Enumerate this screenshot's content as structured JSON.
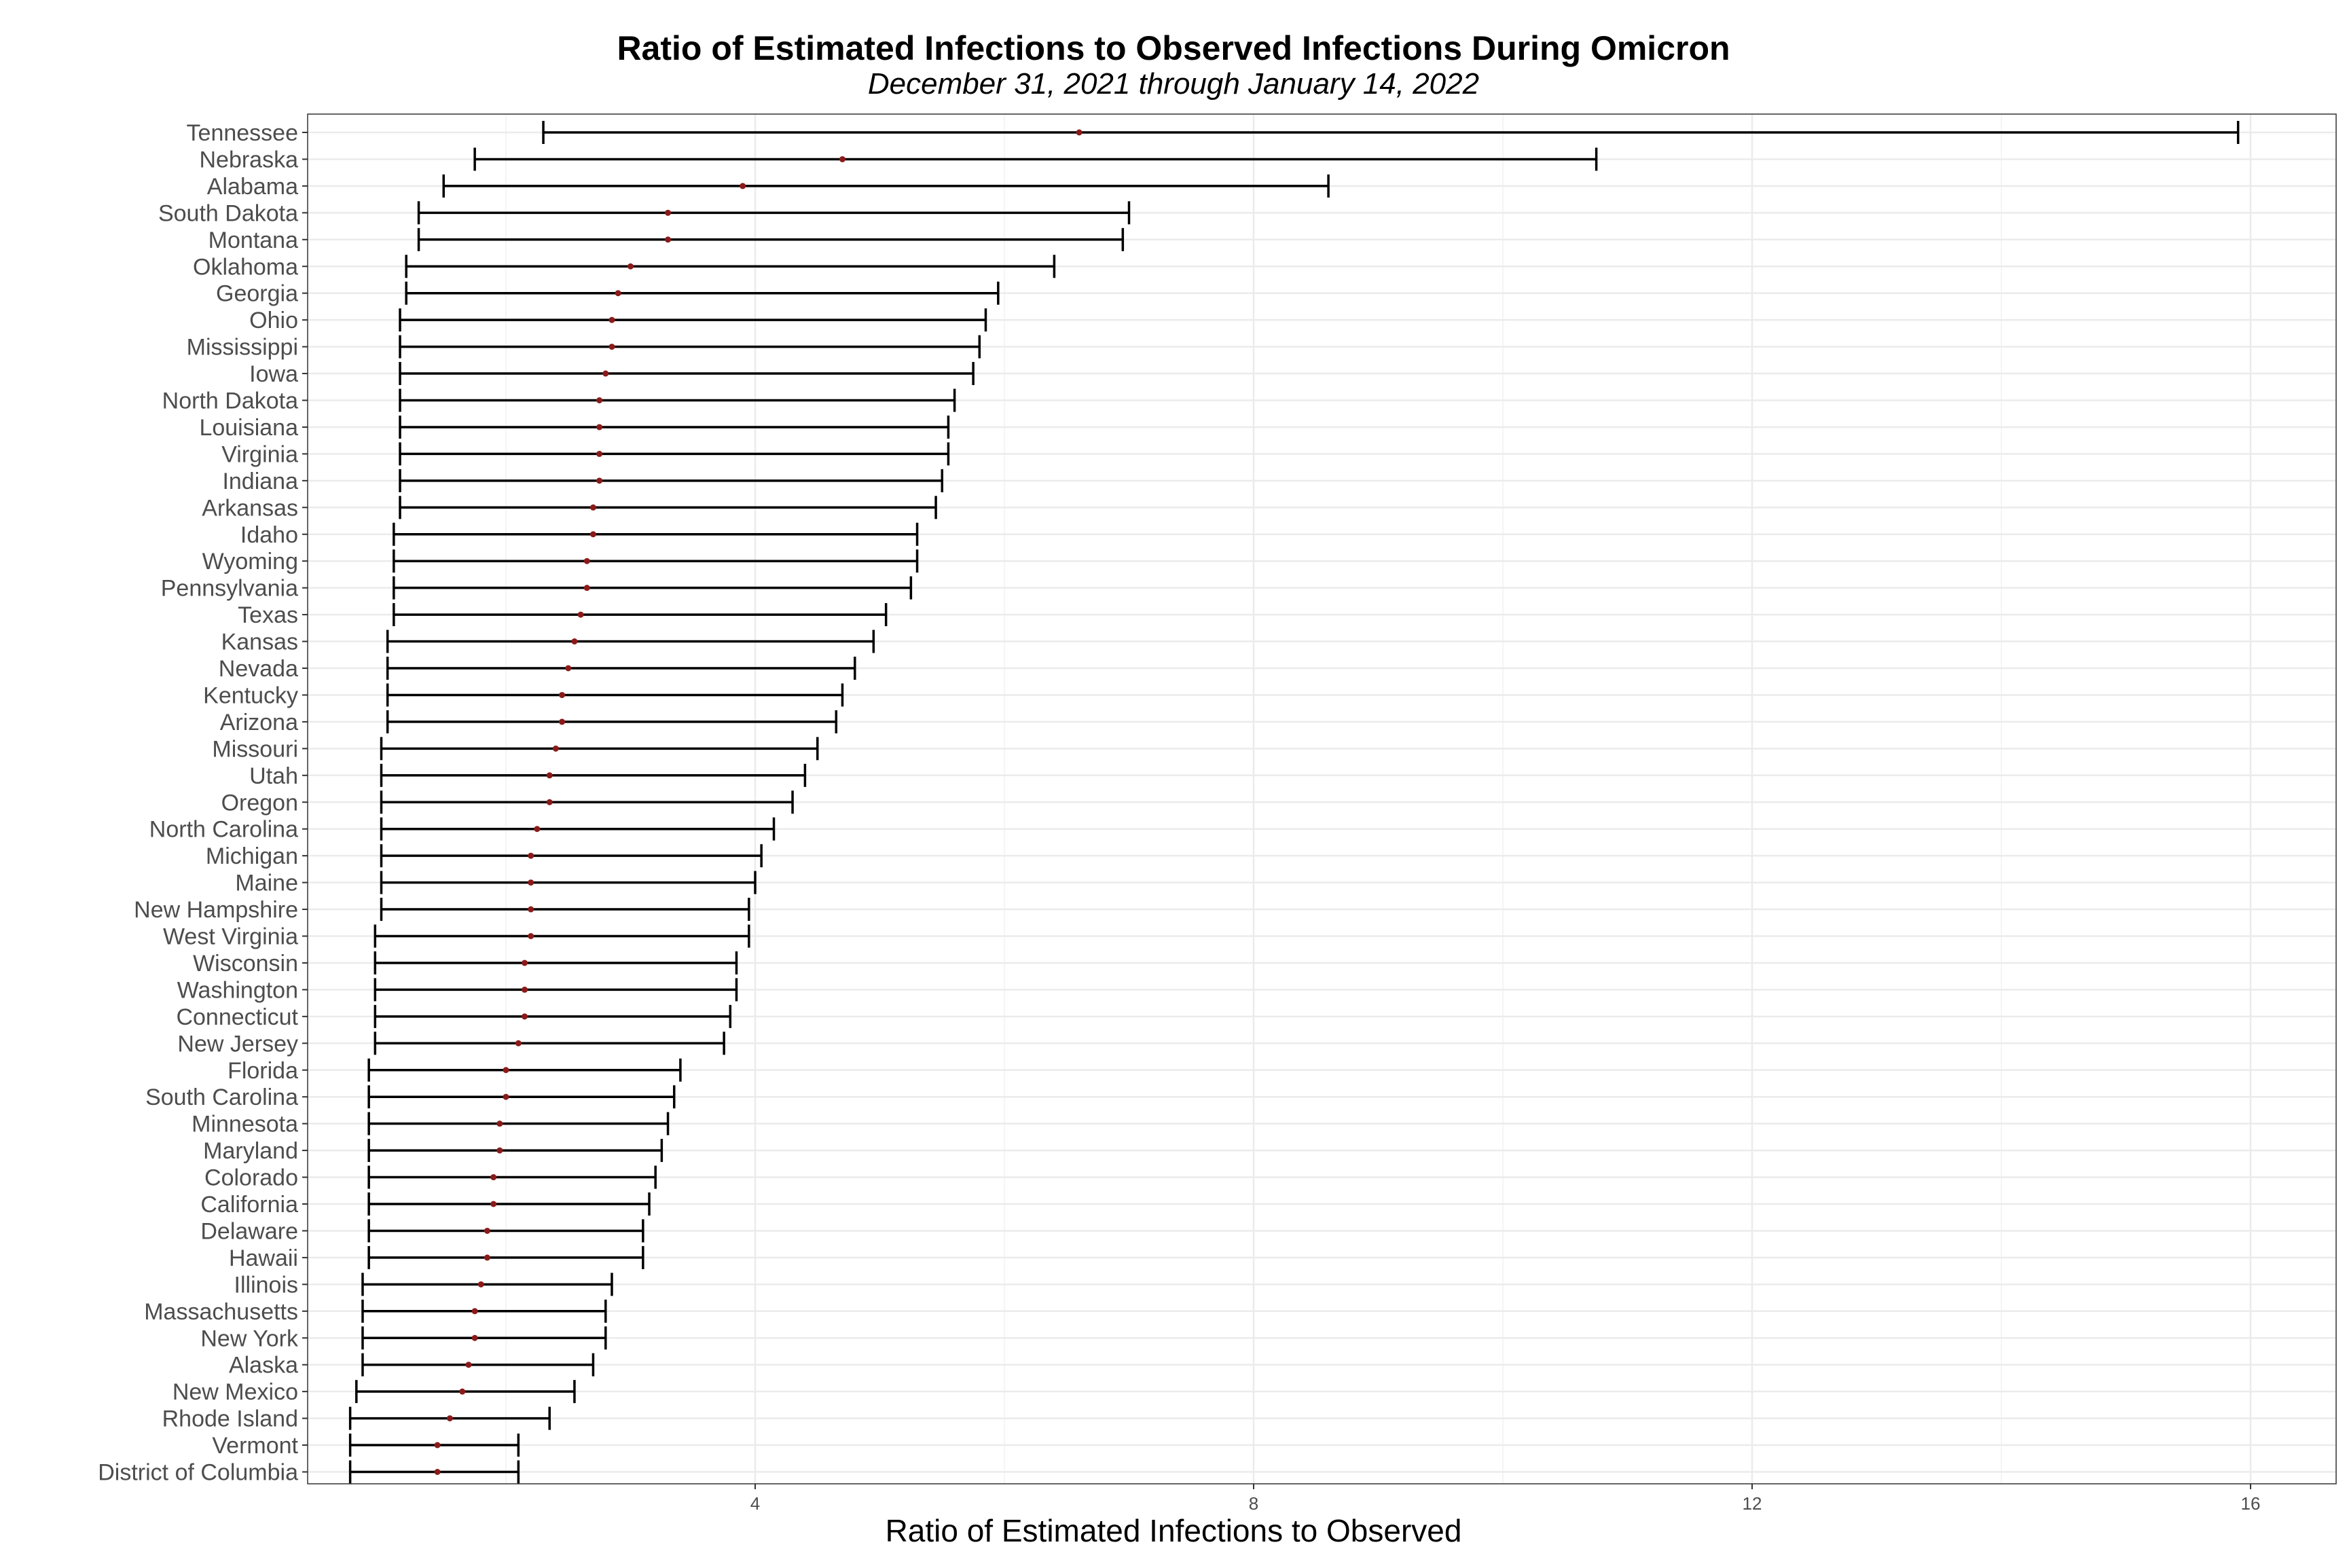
{
  "chart_data": {
    "type": "errorbar",
    "title": "Ratio of Estimated Infections to Observed Infections During Omicron",
    "subtitle": "December 31, 2021 through January 14, 2022",
    "xlabel": "Ratio of Estimated Infections to Observed",
    "ylabel": "",
    "xlim": [
      0,
      16.6
    ],
    "x_ticks": [
      4,
      8,
      12,
      16
    ],
    "grid": true,
    "point_color": "#8b1a1a",
    "bar_color": "#000000",
    "categories": [
      "Tennessee",
      "Nebraska",
      "Alabama",
      "South Dakota",
      "Montana",
      "Oklahoma",
      "Georgia",
      "Ohio",
      "Mississippi",
      "Iowa",
      "North Dakota",
      "Louisiana",
      "Virginia",
      "Indiana",
      "Arkansas",
      "Idaho",
      "Wyoming",
      "Pennsylvania",
      "Texas",
      "Kansas",
      "Nevada",
      "Kentucky",
      "Arizona",
      "Missouri",
      "Utah",
      "Oregon",
      "North Carolina",
      "Michigan",
      "Maine",
      "New Hampshire",
      "West Virginia",
      "Wisconsin",
      "Washington",
      "Connecticut",
      "New Jersey",
      "Florida",
      "South Carolina",
      "Minnesota",
      "Maryland",
      "Colorado",
      "California",
      "Delaware",
      "Hawaii",
      "Illinois",
      "Massachusetts",
      "New York",
      "Alaska",
      "New Mexico",
      "Rhode Island",
      "Vermont",
      "District of Columbia"
    ],
    "estimate": [
      6.6,
      4.7,
      3.9,
      3.3,
      3.3,
      3.0,
      2.9,
      2.85,
      2.85,
      2.8,
      2.75,
      2.75,
      2.75,
      2.75,
      2.7,
      2.7,
      2.65,
      2.65,
      2.6,
      2.55,
      2.5,
      2.45,
      2.45,
      2.4,
      2.35,
      2.35,
      2.25,
      2.2,
      2.2,
      2.2,
      2.2,
      2.15,
      2.15,
      2.15,
      2.1,
      2.0,
      2.0,
      1.95,
      1.95,
      1.9,
      1.9,
      1.85,
      1.85,
      1.8,
      1.75,
      1.75,
      1.7,
      1.65,
      1.55,
      1.45,
      1.45
    ],
    "lower": [
      2.3,
      1.75,
      1.5,
      1.3,
      1.3,
      1.2,
      1.2,
      1.15,
      1.15,
      1.15,
      1.15,
      1.15,
      1.15,
      1.15,
      1.15,
      1.1,
      1.1,
      1.1,
      1.1,
      1.05,
      1.05,
      1.05,
      1.05,
      1.0,
      1.0,
      1.0,
      1.0,
      1.0,
      1.0,
      1.0,
      0.95,
      0.95,
      0.95,
      0.95,
      0.95,
      0.9,
      0.9,
      0.9,
      0.9,
      0.9,
      0.9,
      0.9,
      0.9,
      0.85,
      0.85,
      0.85,
      0.85,
      0.8,
      0.75,
      0.75,
      0.75
    ],
    "upper": [
      15.9,
      10.75,
      8.6,
      7.0,
      6.95,
      6.4,
      5.95,
      5.85,
      5.8,
      5.75,
      5.6,
      5.55,
      5.55,
      5.5,
      5.45,
      5.3,
      5.3,
      5.25,
      5.05,
      4.95,
      4.8,
      4.7,
      4.65,
      4.5,
      4.4,
      4.3,
      4.15,
      4.05,
      4.0,
      3.95,
      3.95,
      3.85,
      3.85,
      3.8,
      3.75,
      3.4,
      3.35,
      3.3,
      3.25,
      3.2,
      3.15,
      3.1,
      3.1,
      2.85,
      2.8,
      2.8,
      2.7,
      2.55,
      2.35,
      2.1,
      2.1
    ]
  }
}
